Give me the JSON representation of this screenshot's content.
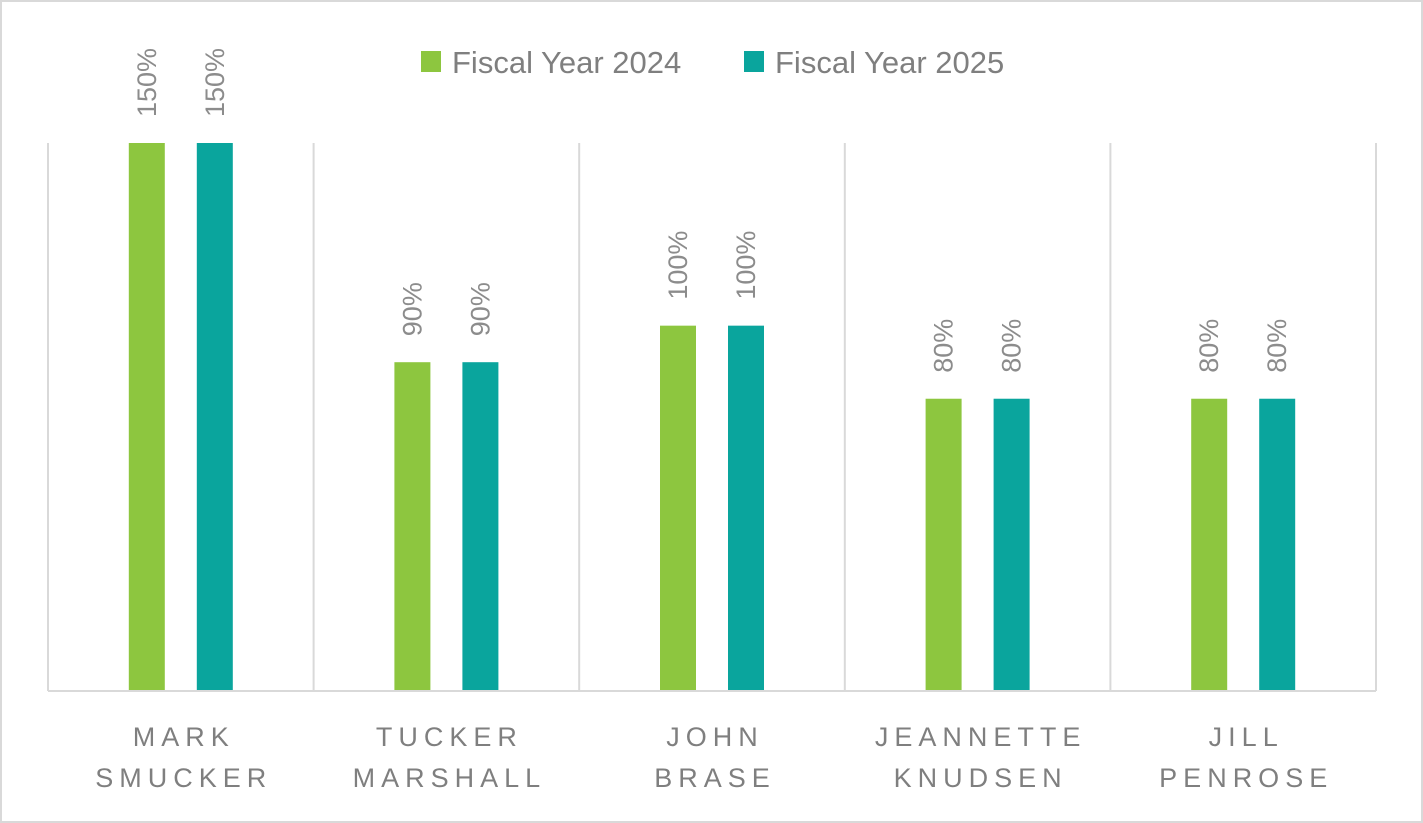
{
  "chart_data": {
    "type": "bar",
    "title": "",
    "xlabel": "",
    "ylabel": "",
    "ylim": [
      0,
      150
    ],
    "grid": false,
    "legend_position": "top-center",
    "categories": [
      [
        "MARK",
        "SMUCKER"
      ],
      [
        "TUCKER",
        "MARSHALL"
      ],
      [
        "JOHN",
        "BRASE"
      ],
      [
        "JEANNETTE",
        "KNUDSEN"
      ],
      [
        "JILL",
        "PENROSE"
      ]
    ],
    "series": [
      {
        "name": "Fiscal Year 2024",
        "color": "#8dc63f",
        "values": [
          150,
          90,
          100,
          80,
          80
        ],
        "labels": [
          "150%",
          "90%",
          "100%",
          "80%",
          "80%"
        ]
      },
      {
        "name": "Fiscal Year 2025",
        "color": "#0aa59d",
        "values": [
          150,
          90,
          100,
          80,
          80
        ],
        "labels": [
          "150%",
          "90%",
          "100%",
          "80%",
          "80%"
        ]
      }
    ]
  }
}
